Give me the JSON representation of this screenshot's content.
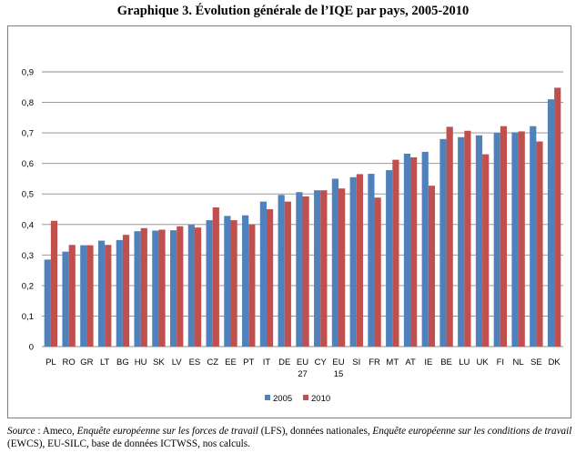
{
  "chart_data": {
    "type": "bar",
    "title": "Graphique 3. Évolution générale de l’IQE par pays, 2005-2010",
    "categories": [
      [
        "PL"
      ],
      [
        "RO"
      ],
      [
        "GR"
      ],
      [
        "LT"
      ],
      [
        "BG"
      ],
      [
        "HU"
      ],
      [
        "SK"
      ],
      [
        "LV"
      ],
      [
        "ES"
      ],
      [
        "CZ"
      ],
      [
        "EE"
      ],
      [
        "PT"
      ],
      [
        "IT"
      ],
      [
        "DE"
      ],
      [
        "EU",
        "27"
      ],
      [
        "CY"
      ],
      [
        "EU",
        "15"
      ],
      [
        "SI"
      ],
      [
        "FR"
      ],
      [
        "MT"
      ],
      [
        "AT"
      ],
      [
        "IE"
      ],
      [
        "BE"
      ],
      [
        "LU"
      ],
      [
        "UK"
      ],
      [
        "FI"
      ],
      [
        "NL"
      ],
      [
        "SE"
      ],
      [
        "DK"
      ]
    ],
    "series": [
      {
        "name": "2005",
        "color": "#4f81bd",
        "values": [
          0.285,
          0.311,
          0.332,
          0.347,
          0.349,
          0.378,
          0.38,
          0.381,
          0.399,
          0.414,
          0.428,
          0.43,
          0.475,
          0.497,
          0.506,
          0.512,
          0.55,
          0.555,
          0.566,
          0.578,
          0.632,
          0.638,
          0.68,
          0.686,
          0.692,
          0.7,
          0.702,
          0.722,
          0.81
        ]
      },
      {
        "name": "2010",
        "color": "#c0504d",
        "values": [
          0.412,
          0.333,
          0.332,
          0.333,
          0.366,
          0.388,
          0.383,
          0.394,
          0.39,
          0.456,
          0.414,
          0.4,
          0.45,
          0.475,
          0.492,
          0.512,
          0.518,
          0.565,
          0.488,
          0.612,
          0.62,
          0.527,
          0.72,
          0.707,
          0.63,
          0.722,
          0.705,
          0.672,
          0.848
        ]
      }
    ],
    "ylim": [
      0,
      0.9
    ],
    "yticks": [
      "0",
      "0,1",
      "0,2",
      "0,3",
      "0,4",
      "0,5",
      "0,6",
      "0,7",
      "0,8",
      "0,9"
    ],
    "grid": true,
    "legend": "bottom"
  },
  "source_note": {
    "label": "Source",
    "text1": " : Ameco, ",
    "em1": "Enquête européenne sur les forces de travail",
    "text2": " (LFS), données nationales, ",
    "em2": "Enquête européenne sur les conditions de travail",
    "text3": " (EWCS), EU-SILC, base de données ICTWSS, nos calculs."
  }
}
